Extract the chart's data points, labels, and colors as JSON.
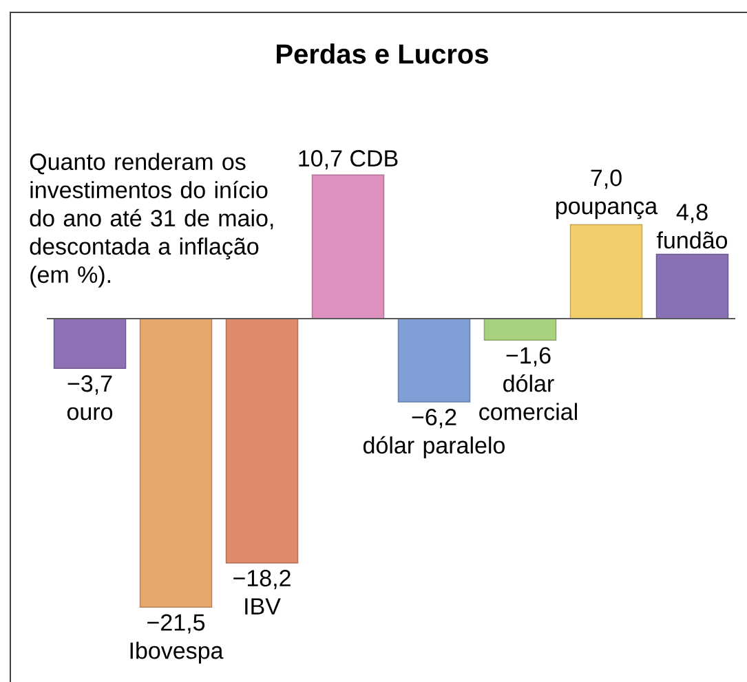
{
  "chart_data": {
    "type": "bar",
    "title": "Perdas e Lucros",
    "annotations": [
      "Quanto renderam os investimentos do início do ano até 31 de maio, descontada a inflação (em %)."
    ],
    "categories": [
      "ouro",
      "Ibovespa",
      "IBV",
      "CDB",
      "dólar paralelo",
      "dólar comercial",
      "poupança",
      "fundão"
    ],
    "values": [
      -3.7,
      -21.5,
      -18.2,
      10.7,
      -6.2,
      -1.6,
      7.0,
      4.8
    ],
    "value_labels": [
      "−3,7",
      "−21,5",
      "−18,2",
      "10,7",
      "−6,2",
      "−1,6",
      "7,0",
      "4,8"
    ],
    "colors": [
      "#8c72b5",
      "#e6a86c",
      "#e08a6c",
      "#de90bf",
      "#7f9fd6",
      "#a9d27f",
      "#f3cf6c",
      "#8a70b4"
    ]
  }
}
